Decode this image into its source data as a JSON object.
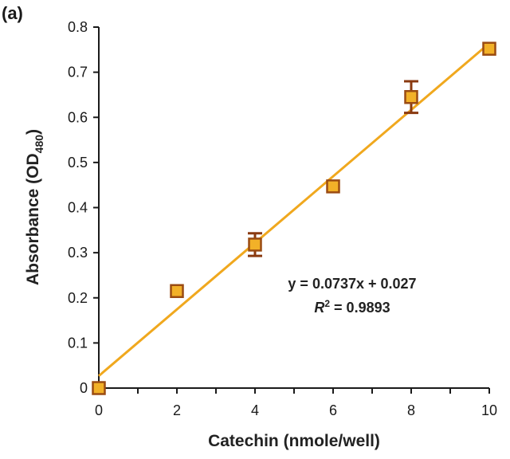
{
  "panel_label": "(a)",
  "colors": {
    "trendline": "#F0A81E",
    "marker_fill": "#F2B128",
    "marker_edge": "#9A4B12",
    "error_bar": "#8A3A10",
    "axis": "#1a1a1a"
  },
  "chart_data": {
    "type": "scatter",
    "title": "",
    "xlabel": "Catechin (nmole/well)",
    "ylabel": {
      "main": "Absorbance (OD",
      "subscript": "480",
      "close": ")"
    },
    "xlim": [
      0,
      10
    ],
    "ylim": [
      0,
      0.8
    ],
    "x_ticks": [
      0,
      2,
      4,
      6,
      8,
      10
    ],
    "x_tick_labels": [
      "0",
      "2",
      "4",
      "6",
      "8",
      "10"
    ],
    "y_ticks": [
      0,
      0.1,
      0.2,
      0.3,
      0.4,
      0.5,
      0.6,
      0.7,
      0.8
    ],
    "y_tick_labels": [
      "0",
      "0.1",
      "0.2",
      "0.3",
      "0.4",
      "0.5",
      "0.6",
      "0.7",
      "0.8"
    ],
    "grid": false,
    "points": [
      {
        "x": 0,
        "y": 0.0,
        "err": 0.0
      },
      {
        "x": 2,
        "y": 0.215,
        "err": 0.0
      },
      {
        "x": 4,
        "y": 0.318,
        "err": 0.025
      },
      {
        "x": 6,
        "y": 0.447,
        "err": 0.0
      },
      {
        "x": 8,
        "y": 0.645,
        "err": 0.035
      },
      {
        "x": 10,
        "y": 0.752,
        "err": 0.0
      }
    ],
    "trendline": {
      "slope": 0.0737,
      "intercept": 0.027
    },
    "annotations": {
      "equation": "y = 0.0737x + 0.027",
      "r2_symbol": "R",
      "r2_superscript": "2",
      "r2_value": " = 0.9893"
    }
  }
}
